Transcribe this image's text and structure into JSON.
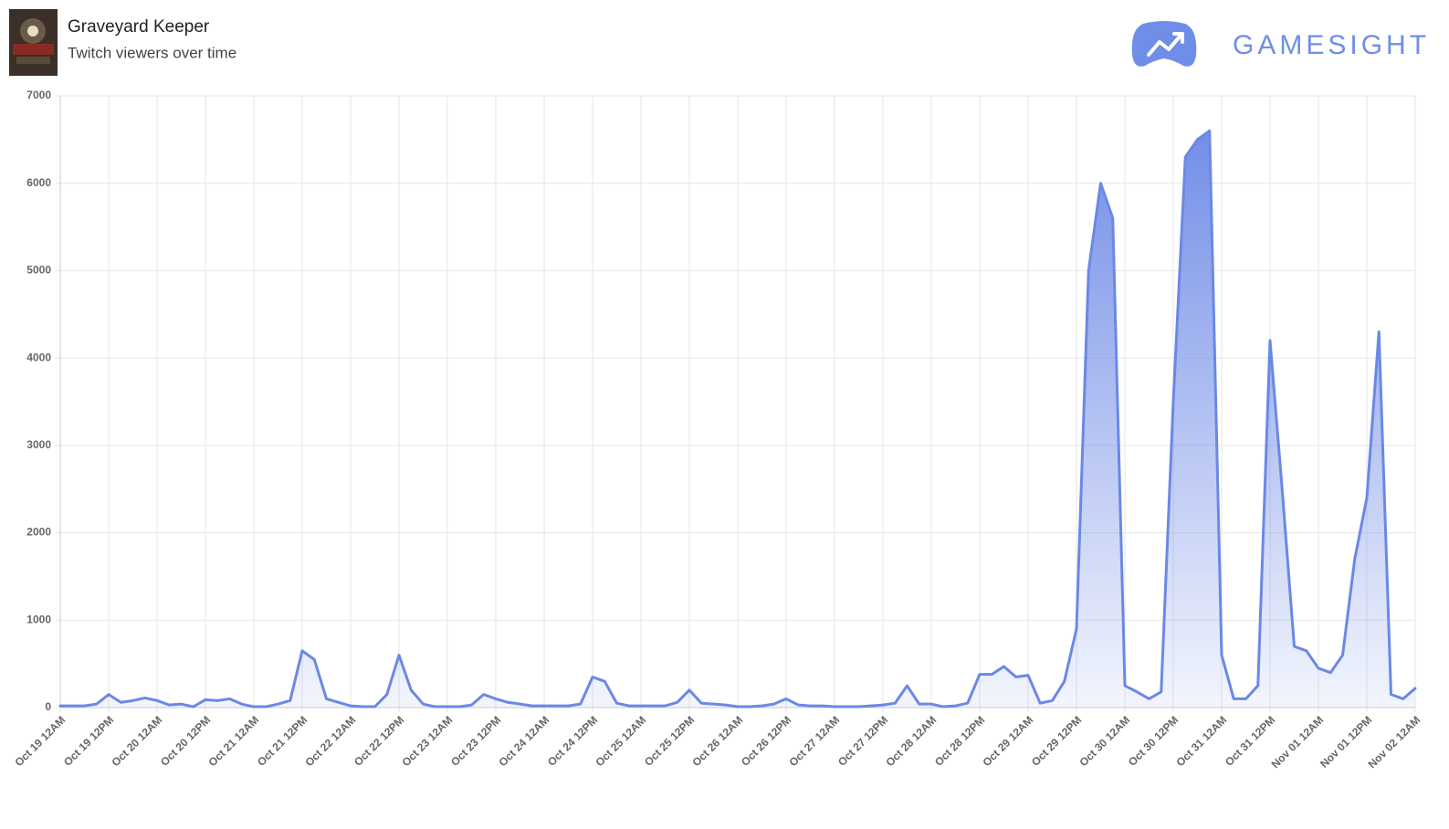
{
  "header": {
    "title": "Graveyard Keeper",
    "subtitle": "Twitch viewers over time",
    "brand": "GAMESIGHT"
  },
  "chart_data": {
    "type": "area",
    "categories": [
      "Oct 19 12AM",
      null,
      null,
      null,
      "Oct 19 12PM",
      null,
      null,
      null,
      "Oct 20 12AM",
      null,
      null,
      null,
      "Oct 20 12PM",
      null,
      null,
      null,
      "Oct 21 12AM",
      null,
      null,
      null,
      "Oct 21 12PM",
      null,
      null,
      null,
      "Oct 22 12AM",
      null,
      null,
      null,
      "Oct 22 12PM",
      null,
      null,
      null,
      "Oct 23 12AM",
      null,
      null,
      null,
      "Oct 23 12PM",
      null,
      null,
      null,
      "Oct 24 12AM",
      null,
      null,
      null,
      "Oct 24 12PM",
      null,
      null,
      null,
      "Oct 25 12AM",
      null,
      null,
      null,
      "Oct 25 12PM",
      null,
      null,
      null,
      "Oct 26 12AM",
      null,
      null,
      null,
      "Oct 26 12PM",
      null,
      null,
      null,
      "Oct 27 12AM",
      null,
      null,
      null,
      "Oct 27 12PM",
      null,
      null,
      null,
      "Oct 28 12AM",
      null,
      null,
      null,
      "Oct 28 12PM",
      null,
      null,
      null,
      "Oct 29 12AM",
      null,
      null,
      null,
      "Oct 29 12PM",
      null,
      null,
      null,
      "Oct 30 12AM",
      null,
      null,
      null,
      "Oct 30 12PM",
      null,
      null,
      null,
      "Oct 31 12AM",
      null,
      null,
      null,
      "Oct 31 12PM",
      null,
      null,
      null,
      "Nov 01 12AM",
      null,
      null,
      null,
      "Nov 01 12PM",
      null,
      null,
      null,
      "Nov 02 12AM"
    ],
    "series": [
      {
        "name": "Twitch viewers",
        "color": "#6b88e6",
        "values": [
          20,
          20,
          20,
          40,
          150,
          60,
          80,
          110,
          80,
          30,
          40,
          10,
          90,
          80,
          100,
          40,
          10,
          10,
          40,
          80,
          650,
          550,
          100,
          60,
          20,
          10,
          10,
          150,
          600,
          200,
          40,
          10,
          10,
          10,
          30,
          150,
          100,
          60,
          40,
          20,
          20,
          20,
          20,
          40,
          350,
          300,
          50,
          20,
          20,
          20,
          20,
          60,
          200,
          50,
          40,
          30,
          10,
          10,
          20,
          40,
          100,
          30,
          20,
          20,
          10,
          10,
          10,
          20,
          30,
          50,
          250,
          40,
          40,
          10,
          20,
          50,
          380,
          380,
          470,
          350,
          370,
          50,
          80,
          300,
          900,
          5000,
          6000,
          5600,
          250,
          180,
          100,
          180,
          3500,
          6300,
          6500,
          6600,
          600,
          100,
          100,
          250,
          4200,
          2500,
          700,
          650,
          450,
          400,
          600,
          1700,
          2400,
          4300,
          150,
          100,
          220
        ]
      }
    ],
    "ylim": [
      0,
      7000
    ],
    "yticks": [
      0,
      1000,
      2000,
      3000,
      4000,
      5000,
      6000,
      7000
    ],
    "grid": true
  }
}
